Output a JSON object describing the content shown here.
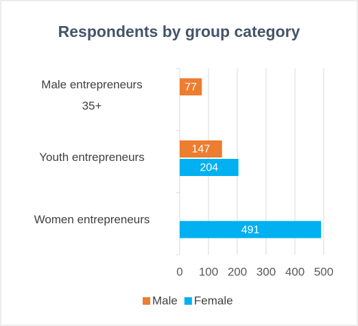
{
  "chart_data": {
    "type": "bar",
    "orientation": "horizontal",
    "title": "Respondents by group category",
    "categories": [
      "Male entrepreneurs 35+",
      "Youth entrepreneurs",
      "Women entrepreneurs"
    ],
    "series": [
      {
        "name": "Male",
        "color": "#ed7d31",
        "values": [
          77,
          147,
          null
        ]
      },
      {
        "name": "Female",
        "color": "#00b0f0",
        "values": [
          null,
          204,
          491
        ]
      }
    ],
    "xlim": [
      0,
      500
    ],
    "xticks": [
      0,
      100,
      200,
      300,
      400,
      500
    ],
    "grid": true,
    "legend": "bottom"
  }
}
